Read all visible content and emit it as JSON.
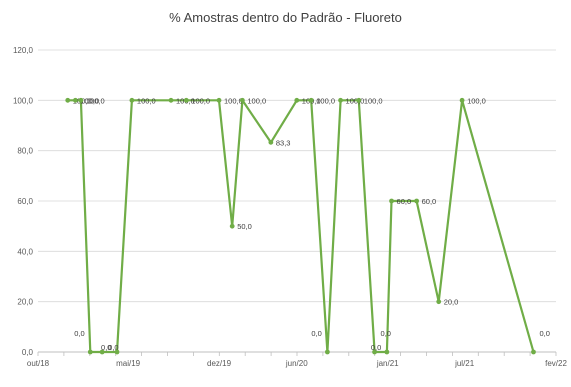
{
  "chart_data": {
    "type": "line",
    "title": "% Amostras dentro do Padrão - Fluoreto",
    "xlabel": "",
    "ylabel": "",
    "ylim": [
      0,
      120
    ],
    "y_ticks": [
      "0,0",
      "20,0",
      "40,0",
      "60,0",
      "80,0",
      "100,0",
      "120,0"
    ],
    "x_range": [
      "2018-10-01",
      "2022-02-01"
    ],
    "x_ticks": [
      {
        "date": "2018-10-01",
        "label": "out/18"
      },
      {
        "date": "2019-05-01",
        "label": "mai/19"
      },
      {
        "date": "2019-12-01",
        "label": "dez/19"
      },
      {
        "date": "2020-06-01",
        "label": "jun/20"
      },
      {
        "date": "2021-01-01",
        "label": "jan/21"
      },
      {
        "date": "2021-07-01",
        "label": "jul/21"
      },
      {
        "date": "2022-02-01",
        "label": "fev/22"
      }
    ],
    "grid": true,
    "line_color": "#70ad47",
    "series": [
      {
        "name": "",
        "points": [
          {
            "x": "2018-12-10",
            "y": 100,
            "label": "100,0"
          },
          {
            "x": "2018-12-28",
            "y": 100,
            "label": "100,0"
          },
          {
            "x": "2019-01-10",
            "y": 100,
            "label": "100,0"
          },
          {
            "x": "2019-02-01",
            "y": 0,
            "label": "0,0"
          },
          {
            "x": "2019-03-01",
            "y": 0,
            "label": "0,0"
          },
          {
            "x": "2019-04-05",
            "y": 0,
            "label": "0,0"
          },
          {
            "x": "2019-05-10",
            "y": 100,
            "label": "100,0"
          },
          {
            "x": "2019-08-10",
            "y": 100,
            "label": "100,0"
          },
          {
            "x": "2019-09-15",
            "y": 100,
            "label": "100,0"
          },
          {
            "x": "2019-12-01",
            "y": 100,
            "label": "100,0"
          },
          {
            "x": "2020-01-01",
            "y": 50,
            "label": "50,0"
          },
          {
            "x": "2020-01-25",
            "y": 100,
            "label": "100,0"
          },
          {
            "x": "2020-04-01",
            "y": 83.3,
            "label": "83,3"
          },
          {
            "x": "2020-06-01",
            "y": 100,
            "label": "100,0"
          },
          {
            "x": "2020-07-05",
            "y": 100,
            "label": "100,0"
          },
          {
            "x": "2020-08-12",
            "y": 0,
            "label": "0,0"
          },
          {
            "x": "2020-09-12",
            "y": 100,
            "label": "100,0"
          },
          {
            "x": "2020-10-25",
            "y": 100,
            "label": "100,0"
          },
          {
            "x": "2020-12-01",
            "y": 0,
            "label": "0,0"
          },
          {
            "x": "2020-12-30",
            "y": 0,
            "label": "0,0"
          },
          {
            "x": "2021-01-10",
            "y": 60,
            "label": "60,0"
          },
          {
            "x": "2021-03-10",
            "y": 60,
            "label": "60,0"
          },
          {
            "x": "2021-05-01",
            "y": 20,
            "label": "20,0"
          },
          {
            "x": "2021-06-25",
            "y": 100,
            "label": "100,0"
          },
          {
            "x": "2021-12-10",
            "y": 0,
            "label": "0,0"
          }
        ]
      }
    ]
  }
}
